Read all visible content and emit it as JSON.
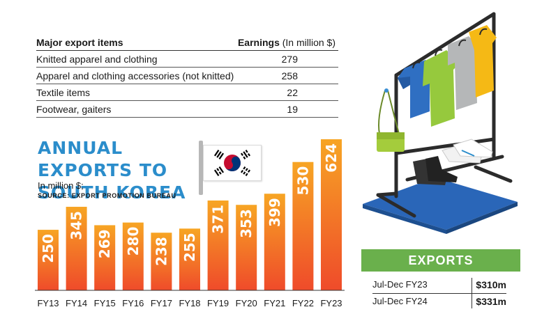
{
  "table": {
    "header_item": "Major export items",
    "header_earnings": "Earnings",
    "header_unit": "(In million $)",
    "rows": [
      {
        "item": "Knitted apparel and clothing",
        "value": "279"
      },
      {
        "item": "Apparel and clothing accessories (not knitted)",
        "value": "258"
      },
      {
        "item": "Textile items",
        "value": "22"
      },
      {
        "item": "Footwear, gaiters",
        "value": "19"
      }
    ]
  },
  "chart_data": {
    "type": "bar",
    "title": "ANNUAL EXPORTS TO SOUTH KOREA",
    "unit_label": "In million $;",
    "source": "SOURCE: EXPORT PROMOTION BUREAU",
    "categories": [
      "FY13",
      "FY14",
      "FY15",
      "FY16",
      "FY17",
      "FY18",
      "FY19",
      "FY20",
      "FY21",
      "FY22",
      "FY23"
    ],
    "values": [
      250,
      345,
      269,
      280,
      238,
      255,
      371,
      353,
      399,
      530,
      624
    ],
    "xlabel": "",
    "ylabel": "",
    "ylim": [
      0,
      624
    ],
    "grid": false,
    "bar_color_top": "#f7a524",
    "bar_color_bottom": "#ef4b2a"
  },
  "exports_box": {
    "title": "EXPORTS",
    "rows": [
      {
        "period": "Jul-Dec FY23",
        "amount": "$310m"
      },
      {
        "period": "Jul-Dec FY24",
        "amount": "$331m"
      }
    ]
  },
  "colors": {
    "title_blue": "#2b8dcb",
    "exports_green": "#6ab04c"
  }
}
